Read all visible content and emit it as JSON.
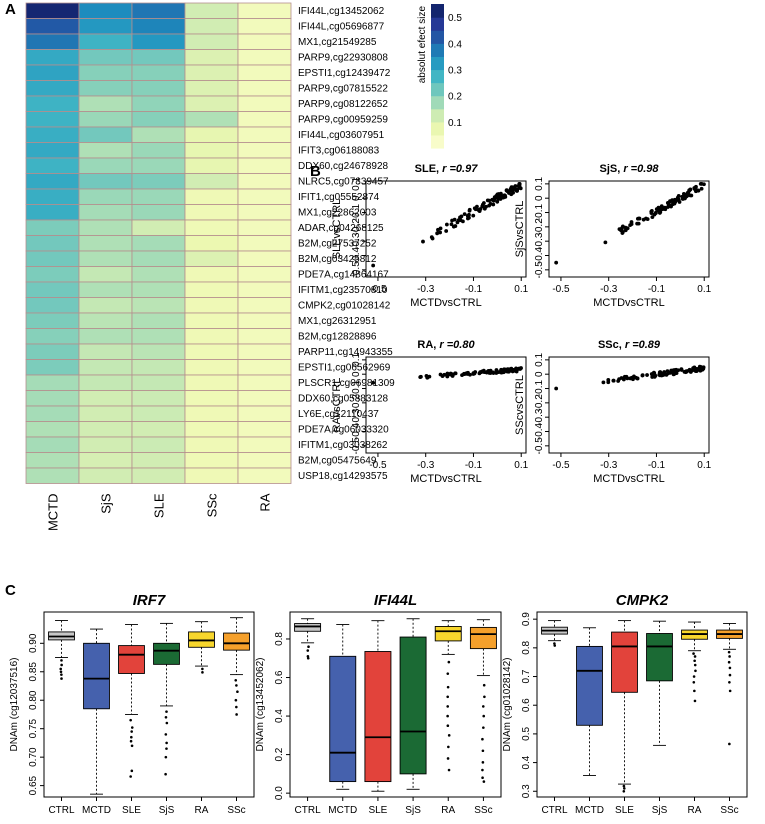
{
  "panel_labels": {
    "a": "A",
    "b": "B",
    "c": "C"
  },
  "chart_data": [
    {
      "type": "heatmap",
      "panel": "A",
      "columns": [
        "MCTD",
        "SjS",
        "SLE",
        "SSc",
        "RA"
      ],
      "rows": [
        "IFI44L,cg13452062",
        "IFI44L,cg05696877",
        "MX1,cg21549285",
        "PARP9,cg22930808",
        "EPSTI1,cg12439472",
        "PARP9,cg07815522",
        "PARP9,cg08122652",
        "PARP9,cg00959259",
        "IFI44L,cg03607951",
        "IFIT3,cg06188083",
        "DDX60,cg24678928",
        "NLRC5,cg07839457",
        "IFIT1,cg05552874",
        "MX1,cg22862003",
        "ADAR,cg04268125",
        "B2M,cg27537252",
        "B2M,cg03425812",
        "PDE7A,cg14864167",
        "IFITM1,cg23570810",
        "CMPK2,cg01028142",
        "MX1,cg26312951",
        "B2M,cg12828896",
        "PARP11,cg14943355",
        "EPSTI1,cg06562969",
        "PLSCR1,cg06981309",
        "DDX60,cg05883128",
        "LY6E,cg12110437",
        "PDE7A,cg06033320",
        "IFITM1,cg03038262",
        "B2M,cg05475649",
        "USP18,cg14293575"
      ],
      "values": [
        [
          0.52,
          0.35,
          0.38,
          0.12,
          0.05
        ],
        [
          0.42,
          0.33,
          0.36,
          0.12,
          0.05
        ],
        [
          0.38,
          0.28,
          0.33,
          0.12,
          0.05
        ],
        [
          0.3,
          0.22,
          0.22,
          0.1,
          0.05
        ],
        [
          0.31,
          0.2,
          0.2,
          0.1,
          0.05
        ],
        [
          0.3,
          0.2,
          0.2,
          0.1,
          0.05
        ],
        [
          0.28,
          0.16,
          0.19,
          0.1,
          0.05
        ],
        [
          0.28,
          0.18,
          0.2,
          0.16,
          0.05
        ],
        [
          0.29,
          0.22,
          0.16,
          0.08,
          0.05
        ],
        [
          0.3,
          0.16,
          0.18,
          0.08,
          0.05
        ],
        [
          0.28,
          0.18,
          0.18,
          0.08,
          0.05
        ],
        [
          0.3,
          0.22,
          0.21,
          0.12,
          0.05
        ],
        [
          0.29,
          0.18,
          0.18,
          0.06,
          0.05
        ],
        [
          0.29,
          0.17,
          0.18,
          0.06,
          0.05
        ],
        [
          0.21,
          0.16,
          0.12,
          0.06,
          0.05
        ],
        [
          0.22,
          0.16,
          0.17,
          0.07,
          0.05
        ],
        [
          0.22,
          0.16,
          0.17,
          0.1,
          0.05
        ],
        [
          0.21,
          0.14,
          0.16,
          0.06,
          0.05
        ],
        [
          0.22,
          0.16,
          0.16,
          0.06,
          0.05
        ],
        [
          0.22,
          0.14,
          0.15,
          0.06,
          0.05
        ],
        [
          0.21,
          0.15,
          0.16,
          0.06,
          0.05
        ],
        [
          0.2,
          0.16,
          0.16,
          0.06,
          0.05
        ],
        [
          0.21,
          0.14,
          0.15,
          0.06,
          0.05
        ],
        [
          0.21,
          0.14,
          0.14,
          0.06,
          0.05
        ],
        [
          0.17,
          0.14,
          0.14,
          0.06,
          0.05
        ],
        [
          0.17,
          0.12,
          0.13,
          0.06,
          0.05
        ],
        [
          0.17,
          0.12,
          0.13,
          0.06,
          0.05
        ],
        [
          0.16,
          0.12,
          0.12,
          0.06,
          0.05
        ],
        [
          0.17,
          0.12,
          0.13,
          0.06,
          0.05
        ],
        [
          0.16,
          0.11,
          0.12,
          0.06,
          0.05
        ],
        [
          0.16,
          0.12,
          0.12,
          0.06,
          0.05
        ]
      ],
      "legend": {
        "title": "absolut efect size",
        "ticks": [
          "0.1",
          "0.2",
          "0.3",
          "0.4",
          "0.5"
        ],
        "tick_values": [
          0.1,
          0.2,
          0.3,
          0.4,
          0.5
        ],
        "range": [
          0.0,
          0.55
        ]
      },
      "colors": [
        "#ffffd9",
        "#edf8b1",
        "#c7e9b4",
        "#7fcdbb",
        "#41b6c4",
        "#1d91c0",
        "#225ea8",
        "#253494",
        "#081d58"
      ],
      "grid_color": "#b58e8e"
    },
    {
      "type": "scatter",
      "panel": "B",
      "title_prefix": "SLE, ",
      "title_stat": "r =0.97",
      "xlabel": "MCTDvsCTRL",
      "ylabel": "SLEvsCTRL",
      "xlim": [
        -0.55,
        0.12
      ],
      "ylim": [
        -0.55,
        0.12
      ],
      "xticks": [
        -0.5,
        -0.3,
        -0.1,
        0.1
      ],
      "xtick_labels": [
        "-0.5",
        "-0.3",
        "-0.1",
        "0.1"
      ],
      "yticks": [
        -0.5,
        -0.4,
        -0.3,
        -0.2,
        -0.1,
        0,
        0.1
      ],
      "ytick_labels": [
        "-0.5",
        "-0.4",
        "-0.3",
        "-0.2",
        "-0.1",
        "0",
        "0.1"
      ],
      "slope": 0.95,
      "spread": 0.03,
      "outlier": [
        -0.52,
        -0.47
      ]
    },
    {
      "type": "scatter",
      "panel": "B",
      "title_prefix": "SjS, ",
      "title_stat": "r =0.98",
      "xlabel": "MCTDvsCTRL",
      "ylabel": "SjSvsCTRL",
      "xlim": [
        -0.55,
        0.12
      ],
      "ylim": [
        -0.55,
        0.12
      ],
      "xticks": [
        -0.5,
        -0.3,
        -0.1,
        0.1
      ],
      "xtick_labels": [
        "-0.5",
        "-0.3",
        "-0.1",
        "0.1"
      ],
      "yticks": [
        -0.5,
        -0.4,
        -0.3,
        -0.2,
        -0.1,
        0,
        0.1
      ],
      "ytick_labels": [
        "-0.5",
        "-0.4",
        "-0.3",
        "-0.2",
        "-0.1",
        "0",
        "0.1"
      ],
      "slope": 0.92,
      "spread": 0.025,
      "outlier": [
        -0.52,
        -0.45
      ]
    },
    {
      "type": "scatter",
      "panel": "B",
      "title_prefix": "RA, ",
      "title_stat": "r =0.80",
      "xlabel": "MCTDvsCTRL",
      "ylabel": "RAvsCTRL",
      "xlim": [
        -0.55,
        0.12
      ],
      "ylim": [
        -0.55,
        0.12
      ],
      "xticks": [
        -0.5,
        -0.3,
        -0.1,
        0.1
      ],
      "xtick_labels": [
        "-0.5",
        "-0.3",
        "-0.1",
        "0.1"
      ],
      "yticks": [
        -0.5,
        -0.4,
        -0.3,
        -0.2,
        -0.1,
        0,
        0.1
      ],
      "ytick_labels": [
        "-0.5",
        "-0.4",
        "-0.3",
        "-0.2",
        "-0.1",
        "0",
        "0.1"
      ],
      "slope": 0.12,
      "spread": 0.012,
      "outlier": [
        -0.52,
        -0.06
      ]
    },
    {
      "type": "scatter",
      "panel": "B",
      "title_prefix": "SSc, ",
      "title_stat": "r =0.89",
      "xlabel": "MCTDvsCTRL",
      "ylabel": "SScvsCTRL",
      "xlim": [
        -0.55,
        0.12
      ],
      "ylim": [
        -0.55,
        0.12
      ],
      "xticks": [
        -0.5,
        -0.3,
        -0.1,
        0.1
      ],
      "xtick_labels": [
        "-0.5",
        "-0.3",
        "-0.1",
        "0.1"
      ],
      "yticks": [
        -0.5,
        -0.4,
        -0.3,
        -0.2,
        -0.1,
        0,
        0.1
      ],
      "ytick_labels": [
        "-0.5",
        "-0.4",
        "-0.3",
        "-0.2",
        "-0.1",
        "0",
        "0.1"
      ],
      "slope": 0.22,
      "spread": 0.015,
      "outlier": [
        -0.52,
        -0.1
      ]
    },
    {
      "type": "box",
      "panel": "C",
      "title": "IRF7",
      "ylabel": "DNAm (cg12037516)",
      "categories": [
        "CTRL",
        "MCTD",
        "SLE",
        "SjS",
        "RA",
        "SSc"
      ],
      "ylim": [
        0.63,
        0.955
      ],
      "yticks": [
        0.65,
        0.7,
        0.75,
        0.8,
        0.85,
        0.9
      ],
      "ytick_labels": [
        "0.65",
        "0.70",
        "0.75",
        "0.80",
        "0.85",
        "0.90"
      ],
      "boxes": [
        {
          "q1": 0.906,
          "median": 0.912,
          "q3": 0.92,
          "wlo": 0.875,
          "whi": 0.94,
          "outliers": [
            0.87,
            0.862,
            0.855,
            0.85,
            0.845,
            0.838
          ]
        },
        {
          "q1": 0.785,
          "median": 0.838,
          "q3": 0.9,
          "wlo": 0.635,
          "whi": 0.925,
          "outliers": []
        },
        {
          "q1": 0.847,
          "median": 0.88,
          "q3": 0.896,
          "wlo": 0.775,
          "whi": 0.933,
          "outliers": [
            0.765,
            0.752,
            0.745,
            0.735,
            0.728,
            0.72,
            0.676,
            0.666
          ]
        },
        {
          "q1": 0.863,
          "median": 0.887,
          "q3": 0.9,
          "wlo": 0.79,
          "whi": 0.935,
          "outliers": [
            0.78,
            0.77,
            0.76,
            0.74,
            0.725,
            0.715,
            0.7,
            0.67
          ]
        },
        {
          "q1": 0.893,
          "median": 0.905,
          "q3": 0.92,
          "wlo": 0.86,
          "whi": 0.938,
          "outliers": [
            0.855,
            0.849
          ]
        },
        {
          "q1": 0.888,
          "median": 0.9,
          "q3": 0.918,
          "wlo": 0.845,
          "whi": 0.945,
          "outliers": [
            0.835,
            0.826,
            0.815,
            0.8,
            0.788,
            0.775
          ]
        }
      ],
      "colors": [
        "#c7c7c7",
        "#4561ad",
        "#e2433b",
        "#1b6a34",
        "#f7d62d",
        "#f5a02b"
      ]
    },
    {
      "type": "box",
      "panel": "C",
      "title": "IFI44L",
      "ylabel": "DNAm (cg13452062)",
      "categories": [
        "CTRL",
        "MCTD",
        "SLE",
        "SjS",
        "RA",
        "SSc"
      ],
      "ylim": [
        -0.02,
        0.94
      ],
      "yticks": [
        0.0,
        0.2,
        0.4,
        0.6,
        0.8
      ],
      "ytick_labels": [
        "0.0",
        "0.2",
        "0.4",
        "0.6",
        "0.8"
      ],
      "boxes": [
        {
          "q1": 0.84,
          "median": 0.865,
          "q3": 0.88,
          "wlo": 0.78,
          "whi": 0.905,
          "outliers": [
            0.76,
            0.74,
            0.71,
            0.7
          ]
        },
        {
          "q1": 0.06,
          "median": 0.21,
          "q3": 0.71,
          "wlo": 0.02,
          "whi": 0.875,
          "outliers": []
        },
        {
          "q1": 0.06,
          "median": 0.29,
          "q3": 0.735,
          "wlo": 0.01,
          "whi": 0.895,
          "outliers": []
        },
        {
          "q1": 0.1,
          "median": 0.32,
          "q3": 0.81,
          "wlo": 0.02,
          "whi": 0.905,
          "outliers": []
        },
        {
          "q1": 0.79,
          "median": 0.84,
          "q3": 0.865,
          "wlo": 0.72,
          "whi": 0.895,
          "outliers": [
            0.68,
            0.62,
            0.55,
            0.5,
            0.45,
            0.4,
            0.35,
            0.3,
            0.24,
            0.18,
            0.12
          ]
        },
        {
          "q1": 0.75,
          "median": 0.825,
          "q3": 0.86,
          "wlo": 0.61,
          "whi": 0.9,
          "outliers": [
            0.56,
            0.5,
            0.45,
            0.4,
            0.34,
            0.28,
            0.22,
            0.16,
            0.12,
            0.08,
            0.06
          ]
        }
      ],
      "colors": [
        "#c7c7c7",
        "#4561ad",
        "#e2433b",
        "#1b6a34",
        "#f7d62d",
        "#f5a02b"
      ]
    },
    {
      "type": "box",
      "panel": "C",
      "title": "CMPK2",
      "ylabel": "DNAm (cg01028142)",
      "categories": [
        "CTRL",
        "MCTD",
        "SLE",
        "SjS",
        "RA",
        "SSc"
      ],
      "ylim": [
        0.28,
        0.925
      ],
      "yticks": [
        0.3,
        0.4,
        0.5,
        0.6,
        0.7,
        0.8,
        0.9
      ],
      "ytick_labels": [
        "0.3",
        "0.4",
        "0.5",
        "0.6",
        "0.7",
        "0.8",
        "0.9"
      ],
      "boxes": [
        {
          "q1": 0.848,
          "median": 0.86,
          "q3": 0.872,
          "wlo": 0.825,
          "whi": 0.895,
          "outliers": [
            0.815,
            0.808
          ]
        },
        {
          "q1": 0.53,
          "median": 0.72,
          "q3": 0.805,
          "wlo": 0.355,
          "whi": 0.87,
          "outliers": []
        },
        {
          "q1": 0.645,
          "median": 0.805,
          "q3": 0.855,
          "wlo": 0.325,
          "whi": 0.895,
          "outliers": [
            0.318,
            0.31,
            0.3
          ]
        },
        {
          "q1": 0.685,
          "median": 0.805,
          "q3": 0.85,
          "wlo": 0.46,
          "whi": 0.893,
          "outliers": []
        },
        {
          "q1": 0.83,
          "median": 0.848,
          "q3": 0.862,
          "wlo": 0.79,
          "whi": 0.89,
          "outliers": [
            0.78,
            0.77,
            0.755,
            0.74,
            0.72,
            0.7,
            0.68,
            0.65,
            0.615
          ]
        },
        {
          "q1": 0.833,
          "median": 0.848,
          "q3": 0.862,
          "wlo": 0.795,
          "whi": 0.885,
          "outliers": [
            0.785,
            0.77,
            0.75,
            0.73,
            0.705,
            0.68,
            0.65,
            0.465
          ]
        }
      ],
      "colors": [
        "#c7c7c7",
        "#4561ad",
        "#e2433b",
        "#1b6a34",
        "#f7d62d",
        "#f5a02b"
      ]
    }
  ]
}
